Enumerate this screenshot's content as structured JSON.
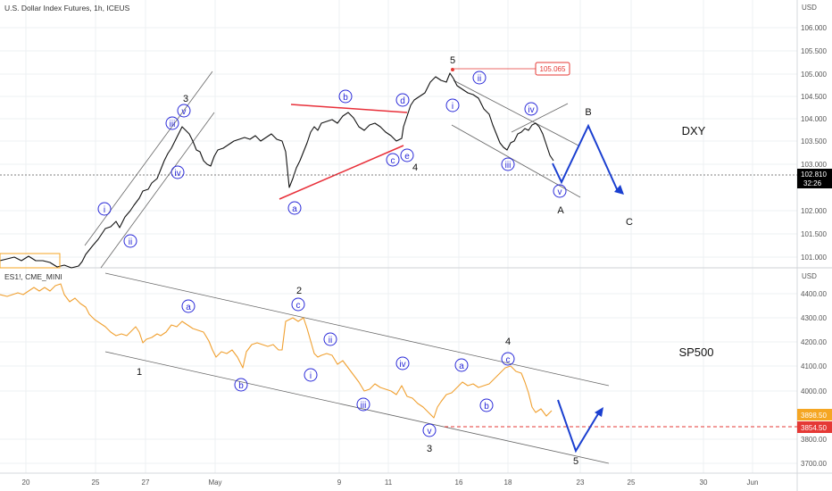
{
  "header": {
    "top_title": "U.S. Dollar Index Futures, 1h, ICEUS",
    "bottom_title": "ES1!, CME_MINI"
  },
  "axes": {
    "top_unit": "USD",
    "bottom_unit": "USD",
    "top_ticks": [
      "106.000",
      "105.500",
      "105.000",
      "104.500",
      "104.000",
      "103.500",
      "103.000",
      "102.000",
      "101.500",
      "101.000"
    ],
    "bottom_ticks": [
      "4400.00",
      "4300.00",
      "4200.00",
      "4100.00",
      "4000.00",
      "3800.00",
      "3700.00"
    ],
    "x_ticks": [
      "20",
      "25",
      "27",
      "May",
      "9",
      "11",
      "16",
      "18",
      "23",
      "25",
      "30",
      "Jun"
    ]
  },
  "price_tags": {
    "dxy_price": "102.810",
    "dxy_countdown": "32:26",
    "es_price": "3898.50",
    "es_level": "3854.50",
    "dxy_high_label": "105.065"
  },
  "panel_labels": {
    "dxy": "DXY",
    "sp500": "SP500"
  },
  "waves_top": {
    "i": "i",
    "ii": "ii",
    "iii": "iii",
    "iv": "iv",
    "v": "v",
    "three": "3",
    "a": "a",
    "b": "b",
    "c": "c",
    "d": "d",
    "e": "e",
    "four": "4",
    "five": "5",
    "sub_i": "i",
    "sub_ii": "ii",
    "sub_iii": "iii",
    "sub_iv": "iv",
    "sub_v": "v",
    "A": "A",
    "B": "B",
    "C": "C"
  },
  "waves_bottom": {
    "one": "1",
    "a": "a",
    "b": "b",
    "c": "c",
    "two": "2",
    "i": "i",
    "ii": "ii",
    "iii": "iii",
    "iv": "iv",
    "v": "v",
    "three": "3",
    "a2": "a",
    "b2": "b",
    "c2": "c",
    "four": "4",
    "five": "5"
  },
  "colors": {
    "dxy_series": "#111111",
    "es_series": "#f0a030",
    "wave_label": "#2a2ad8",
    "triangle": "#e8303a",
    "projection": "#1a3fd0",
    "dxy_tag": "#000000",
    "es_tag": "#f5a623",
    "level_tag": "#e53935"
  },
  "chart_data": [
    {
      "type": "line",
      "title": "U.S. Dollar Index Futures, 1h, ICEUS",
      "ylabel": "USD",
      "ylim": [
        100.8,
        106.4
      ],
      "x": [
        "Apr 19",
        "Apr 21",
        "Apr 25",
        "Apr 27",
        "Apr 28",
        "Apr 29",
        "May 2",
        "May 4",
        "May 5",
        "May 6",
        "May 9",
        "May 10",
        "May 11",
        "May 12",
        "May 13",
        "May 16",
        "May 17",
        "May 18",
        "May 19"
      ],
      "series": [
        {
          "values": [
            101.0,
            101.0,
            101.2,
            101.8,
            103.2,
            104.0,
            103.2,
            103.6,
            102.4,
            103.6,
            104.0,
            103.6,
            103.9,
            103.4,
            104.6,
            105.0,
            104.0,
            103.5,
            102.8
          ]
        }
      ]
    },
    {
      "type": "line",
      "title": "ES1!, CME_MINI",
      "ylabel": "USD",
      "ylim": [
        3660,
        4500
      ],
      "x": [
        "Apr 19",
        "Apr 21",
        "Apr 22",
        "Apr 25",
        "Apr 26",
        "Apr 27",
        "Apr 28",
        "Apr 29",
        "May 2",
        "May 3",
        "May 4",
        "May 5",
        "May 6",
        "May 9",
        "May 10",
        "May 11",
        "May 12",
        "May 13",
        "May 16",
        "May 17",
        "May 18",
        "May 19"
      ],
      "series": [
        {
          "values": [
            4400,
            4420,
            4330,
            4290,
            4200,
            4160,
            4240,
            4150,
            4180,
            4210,
            4300,
            4150,
            4120,
            4020,
            4050,
            3970,
            3880,
            4000,
            4040,
            4080,
            3980,
            3900
          ]
        }
      ]
    }
  ]
}
